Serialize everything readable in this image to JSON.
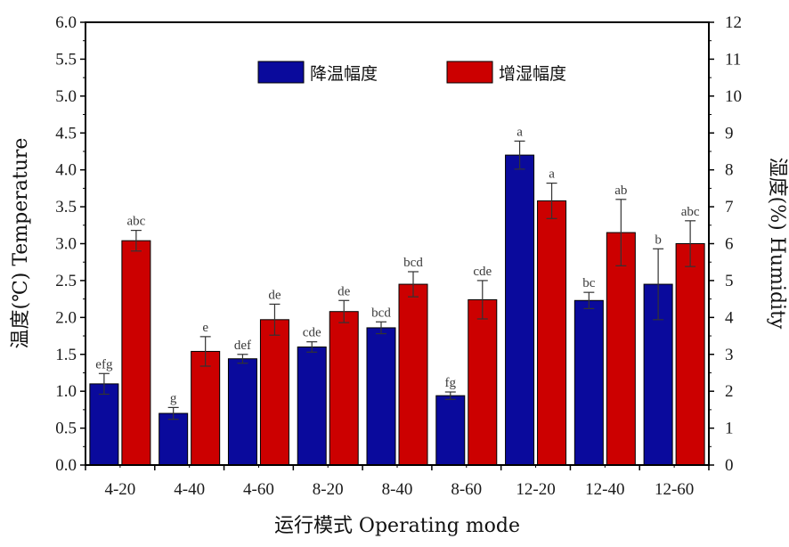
{
  "chart_data": {
    "type": "bar",
    "categories": [
      "4-20",
      "4-40",
      "4-60",
      "8-20",
      "8-40",
      "8-60",
      "12-20",
      "12-40",
      "12-60"
    ],
    "xlabel": "运行模式 Operating mode",
    "ylabel_left": "温度(℃) Temperature",
    "ylabel_right": "湿度(%) Humidity",
    "ylim_left": [
      0,
      6
    ],
    "ylim_right": [
      0,
      12
    ],
    "yticks_left": [
      "0.0",
      "0.5",
      "1.0",
      "1.5",
      "2.0",
      "2.5",
      "3.0",
      "3.5",
      "4.0",
      "4.5",
      "5.0",
      "5.5",
      "6.0"
    ],
    "yticks_right": [
      "0",
      "1",
      "2",
      "3",
      "4",
      "5",
      "6",
      "7",
      "8",
      "9",
      "10",
      "11",
      "12"
    ],
    "grid": false,
    "legend_position": "top-center",
    "series": [
      {
        "name": "降温幅度",
        "axis": "left",
        "color": "#0a0a9c",
        "values": [
          1.1,
          0.7,
          1.44,
          1.6,
          1.86,
          0.94,
          4.2,
          2.23,
          2.45
        ],
        "errors": [
          0.14,
          0.08,
          0.06,
          0.07,
          0.08,
          0.05,
          0.19,
          0.11,
          0.48
        ],
        "labels": [
          "efg",
          "g",
          "def",
          "cde",
          "bcd",
          "fg",
          "a",
          "bc",
          "b"
        ]
      },
      {
        "name": "增湿幅度",
        "axis": "right",
        "color": "#cc0000",
        "values": [
          6.08,
          3.08,
          3.94,
          4.16,
          4.9,
          4.48,
          7.16,
          6.3,
          6.0
        ],
        "errors": [
          0.28,
          0.4,
          0.42,
          0.3,
          0.34,
          0.52,
          0.48,
          0.9,
          0.62
        ],
        "labels": [
          "abc",
          "e",
          "de",
          "de",
          "bcd",
          "cde",
          "a",
          "ab",
          "abc"
        ]
      }
    ]
  }
}
